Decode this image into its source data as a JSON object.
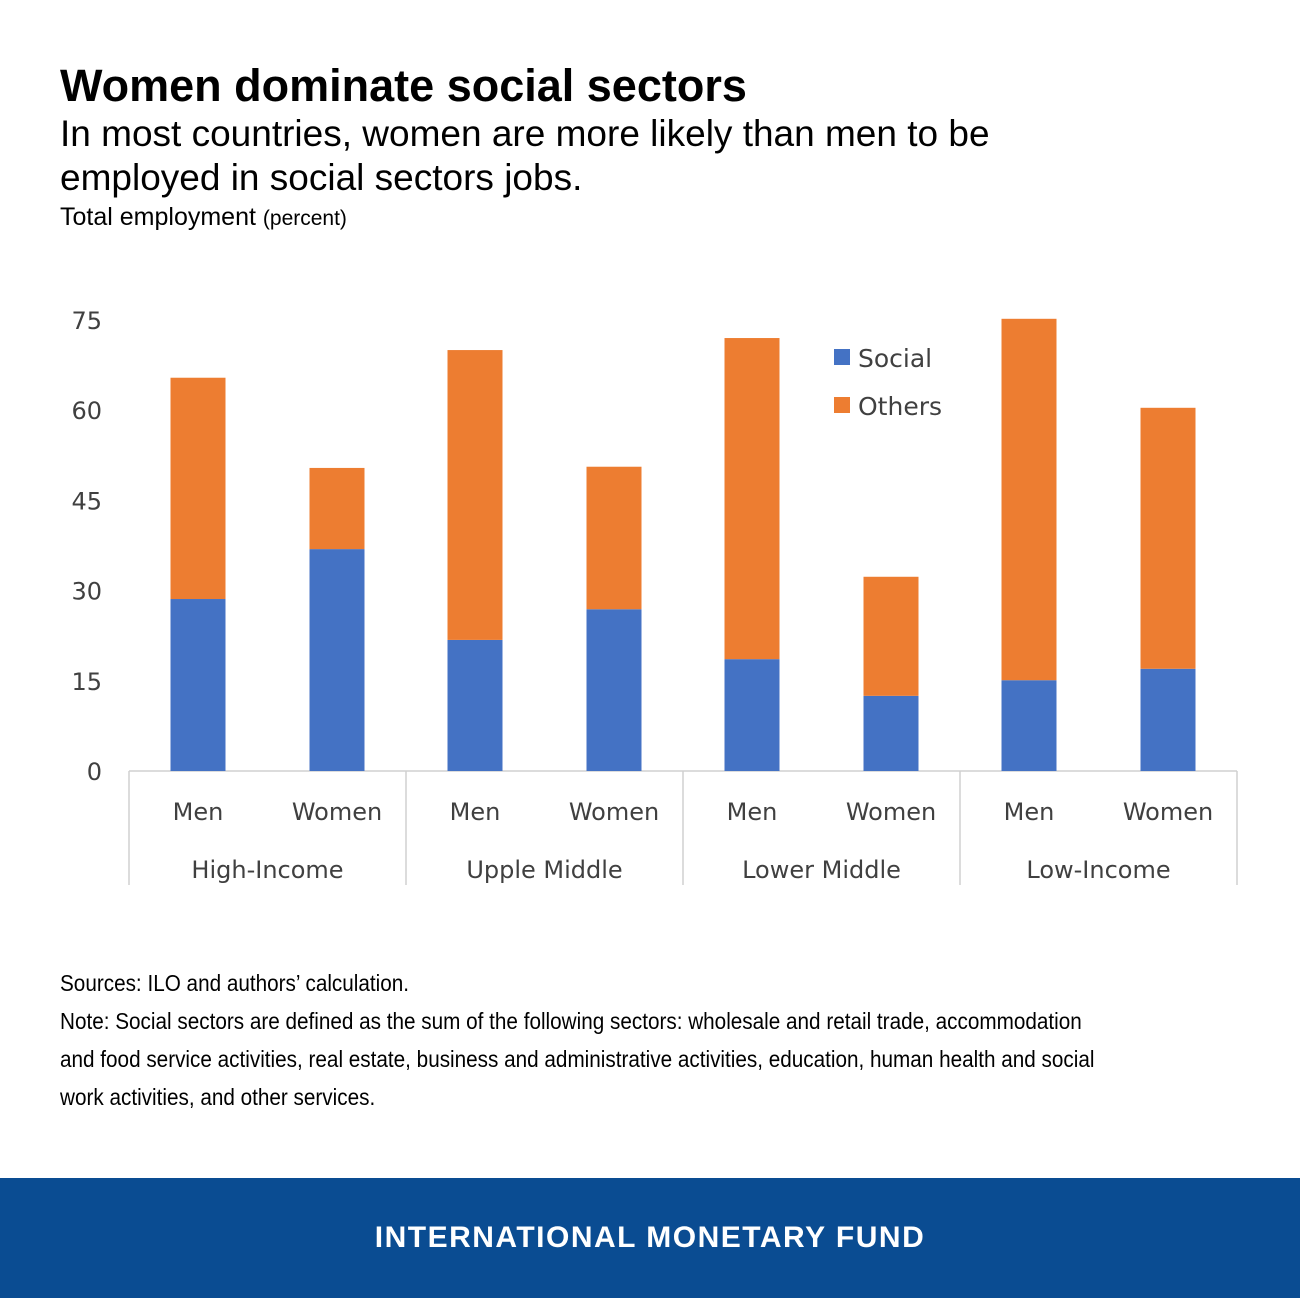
{
  "header": {
    "title": "Women dominate social sectors",
    "subtitle": "In most countries, women are more likely than men to be employed in social sectors jobs.",
    "unit_main": "Total employment",
    "unit_paren": "(percent)"
  },
  "chart_data": {
    "type": "bar",
    "stacked": true,
    "groups": [
      "High-Income",
      "Upple Middle",
      "Lower Middle",
      "Low-Income"
    ],
    "categories": [
      "Men",
      "Women",
      "Men",
      "Women",
      "Men",
      "Women",
      "Men",
      "Women"
    ],
    "series": [
      {
        "name": "Social",
        "color": "#4472c4",
        "values": [
          28.6,
          36.9,
          21.8,
          26.9,
          18.6,
          12.5,
          15.1,
          17.0
        ]
      },
      {
        "name": "Others",
        "color": "#ed7d31",
        "values": [
          36.8,
          13.5,
          48.2,
          23.7,
          53.4,
          19.8,
          60.1,
          43.4
        ]
      }
    ],
    "yticks": [
      0,
      15,
      30,
      45,
      60,
      75
    ],
    "ylim": [
      0,
      75
    ],
    "legend": "top-right",
    "grid": false
  },
  "notes": {
    "sources": "Sources: ILO and authors’ calculation.",
    "note": "Note: Social sectors are defined as the sum of the following sectors: wholesale and retail trade, accommodation and food service activities, real estate, business and administrative activities, education, human health and social work activities, and other services."
  },
  "footer": {
    "label": "INTERNATIONAL MONETARY FUND",
    "color": "#0a4c92"
  }
}
